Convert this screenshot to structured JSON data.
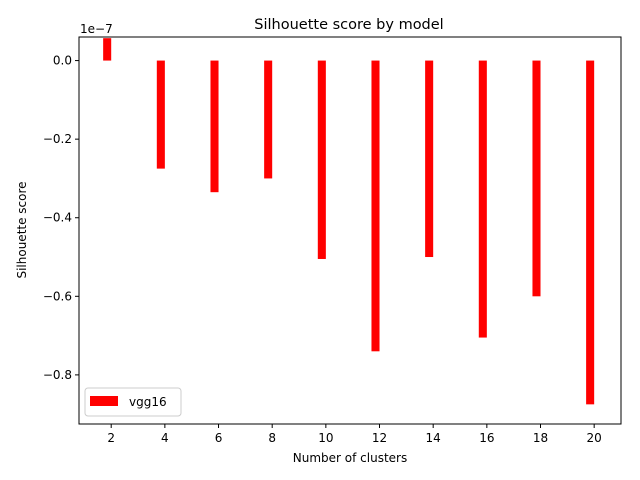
{
  "chart_data": {
    "type": "bar",
    "title": "Silhouette score by model",
    "xlabel": "Number of clusters",
    "ylabel": "Silhouette score",
    "y_scale_label": "1e−7",
    "x_ticks": [
      2,
      4,
      6,
      8,
      10,
      12,
      14,
      16,
      18,
      20
    ],
    "x_tick_labels": [
      "2",
      "4",
      "6",
      "8",
      "10",
      "12",
      "14",
      "16",
      "18",
      "20"
    ],
    "y_ticks": [
      0.0,
      -0.2,
      -0.4,
      -0.6,
      -0.8
    ],
    "y_tick_labels": [
      "0.0",
      "−0.2",
      "−0.4",
      "−0.6",
      "−0.8"
    ],
    "xlim": [
      0.8,
      21.0
    ],
    "ylim": [
      -0.925,
      0.06
    ],
    "bar_width": 0.3,
    "bar_offset": -0.3,
    "series": [
      {
        "name": "vgg16",
        "color": "#ff0000",
        "x": [
          2,
          4,
          6,
          8,
          10,
          12,
          14,
          16,
          18,
          20
        ],
        "values": [
          0.057,
          -0.275,
          -0.335,
          -0.3,
          -0.505,
          -0.74,
          -0.5,
          -0.705,
          -0.6,
          -0.875
        ]
      }
    ],
    "legend_position": "lower-left",
    "grid": false
  }
}
